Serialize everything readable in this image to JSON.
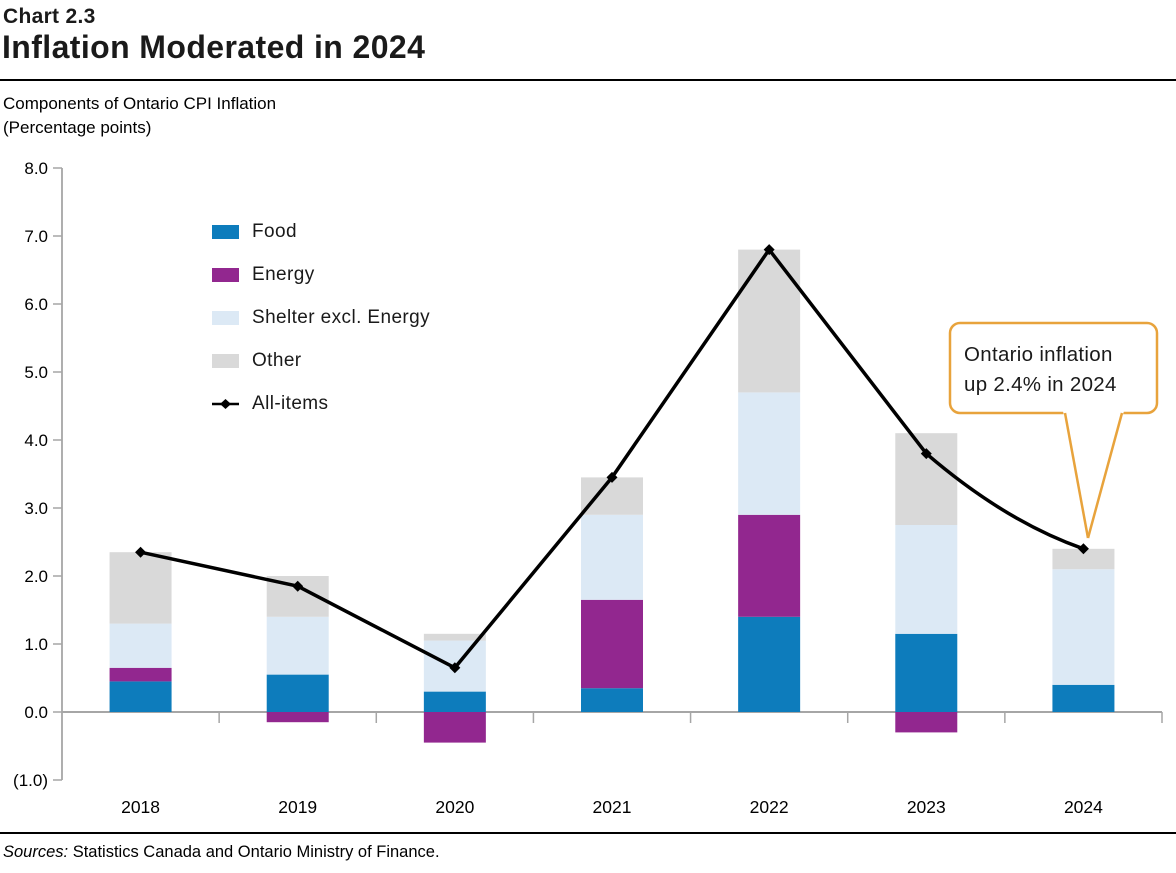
{
  "header": {
    "chart_number": "Chart 2.3",
    "title": "Inflation Moderated in 2024"
  },
  "subtitle": {
    "line1": "Components of Ontario CPI Inflation",
    "line2": "(Percentage points)"
  },
  "chart_data": {
    "type": "bar",
    "stacked": true,
    "title": "Components of Ontario CPI Inflation (Percentage points)",
    "categories": [
      "2018",
      "2019",
      "2020",
      "2021",
      "2022",
      "2023",
      "2024"
    ],
    "series": [
      {
        "name": "Food",
        "color": "#0D7CBC",
        "values": [
          0.45,
          0.55,
          0.3,
          0.35,
          1.4,
          1.15,
          0.4
        ]
      },
      {
        "name": "Energy",
        "color": "#92278F",
        "values": [
          0.2,
          -0.15,
          -0.45,
          1.3,
          1.5,
          -0.3,
          0.0
        ]
      },
      {
        "name": "Shelter excl. Energy",
        "color": "#DCE9F5",
        "values": [
          0.65,
          0.85,
          0.75,
          1.25,
          1.8,
          1.6,
          1.7
        ]
      },
      {
        "name": "Other",
        "color": "#D9D9D9",
        "values": [
          1.05,
          0.6,
          0.1,
          0.55,
          2.1,
          1.35,
          0.3
        ]
      }
    ],
    "line_series": {
      "name": "All-items",
      "color": "#000000",
      "marker": "diamond",
      "values": [
        2.35,
        1.85,
        0.65,
        3.45,
        6.8,
        3.8,
        2.4
      ]
    },
    "ylim": [
      -1.0,
      8.0
    ],
    "yticks": {
      "values": [
        8,
        7,
        6,
        5,
        4,
        3,
        2,
        1,
        0,
        -1
      ],
      "labels": [
        "8.0",
        "7.0",
        "6.0",
        "5.0",
        "4.0",
        "3.0",
        "2.0",
        "1.0",
        "0.0",
        "(1.0)"
      ]
    },
    "grid": false,
    "legend_position": "upper-left-inside",
    "axis_color": "#A6A6A6"
  },
  "annotation": {
    "line1": "Ontario inflation",
    "line2": "up 2.4% in 2024",
    "border_color": "#E8A33C"
  },
  "sources": {
    "prefix": "Sources:",
    "text": " Statistics Canada and Ontario Ministry of Finance."
  }
}
